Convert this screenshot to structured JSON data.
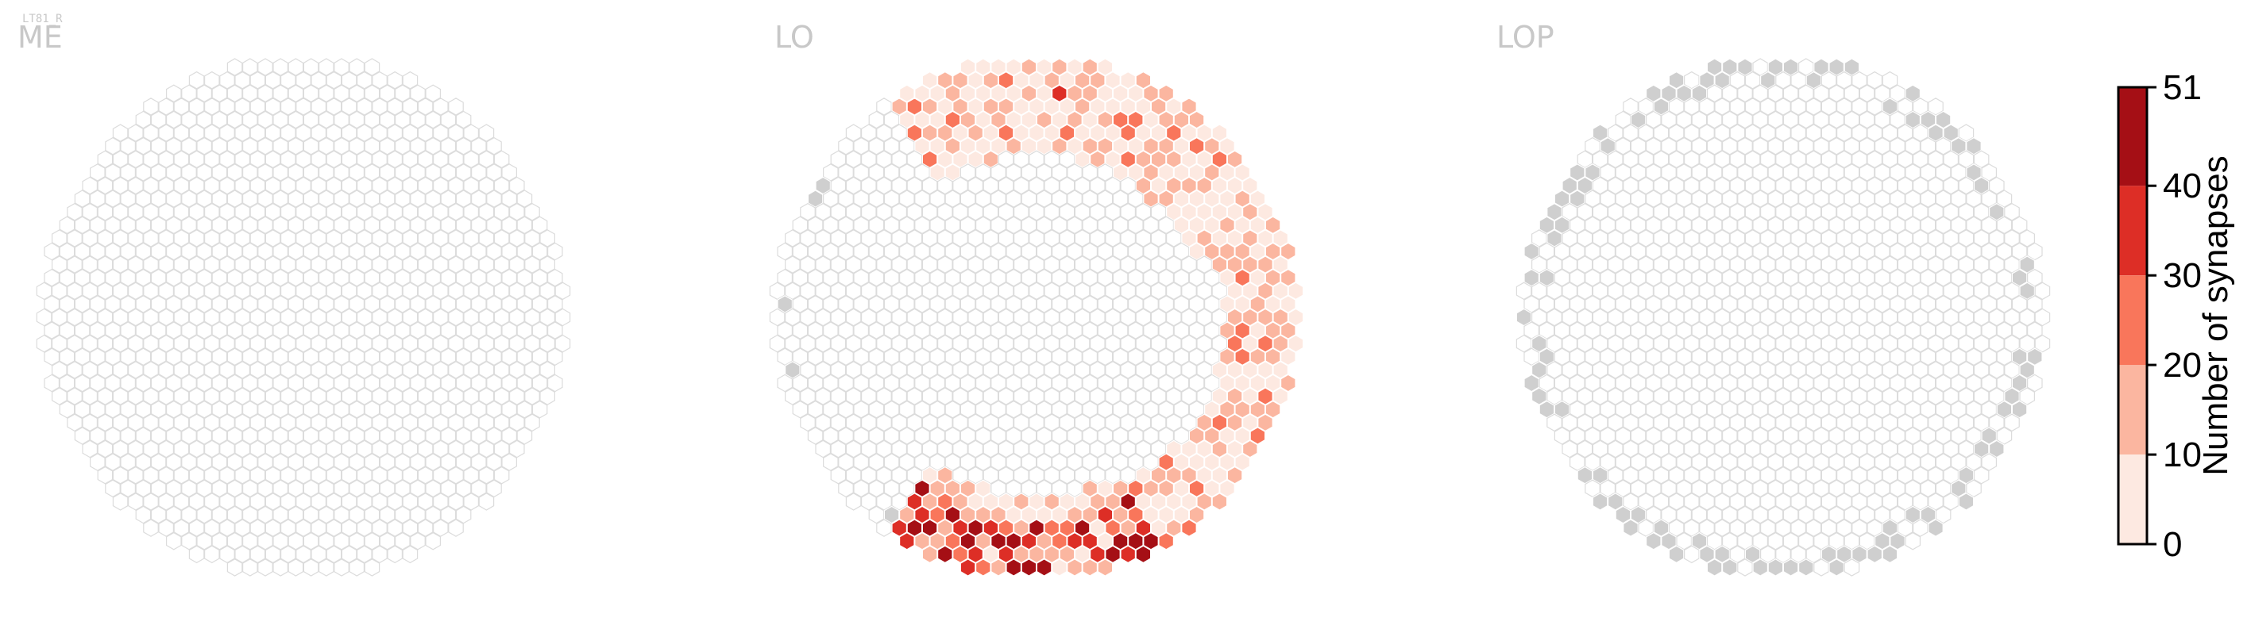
{
  "neuron_label": "LT81_R",
  "chart_data": {
    "type": "heatmap",
    "panels": [
      {
        "id": "ME",
        "title": "ME"
      },
      {
        "id": "LO",
        "title": "LO"
      },
      {
        "id": "LOP",
        "title": "LOP"
      }
    ],
    "colorbar": {
      "label": "Number of synapses",
      "ticks": [
        "0",
        "10",
        "20",
        "30",
        "40",
        "51"
      ],
      "range": [
        0,
        51
      ],
      "bins": [
        {
          "from": 0,
          "to": 10,
          "color": "#fde9e1"
        },
        {
          "from": 10,
          "to": 20,
          "color": "#fbb6a0"
        },
        {
          "from": 20,
          "to": 30,
          "color": "#f9765b"
        },
        {
          "from": 30,
          "to": 40,
          "color": "#dd2e26"
        },
        {
          "from": 40,
          "to": 51,
          "color": "#a50f15"
        }
      ]
    },
    "colors": {
      "empty_fill": "#ffffff",
      "empty_stroke": "#dcdcdc",
      "outside_fill": "#cfcfcf",
      "title": "#c8c8c8"
    }
  }
}
